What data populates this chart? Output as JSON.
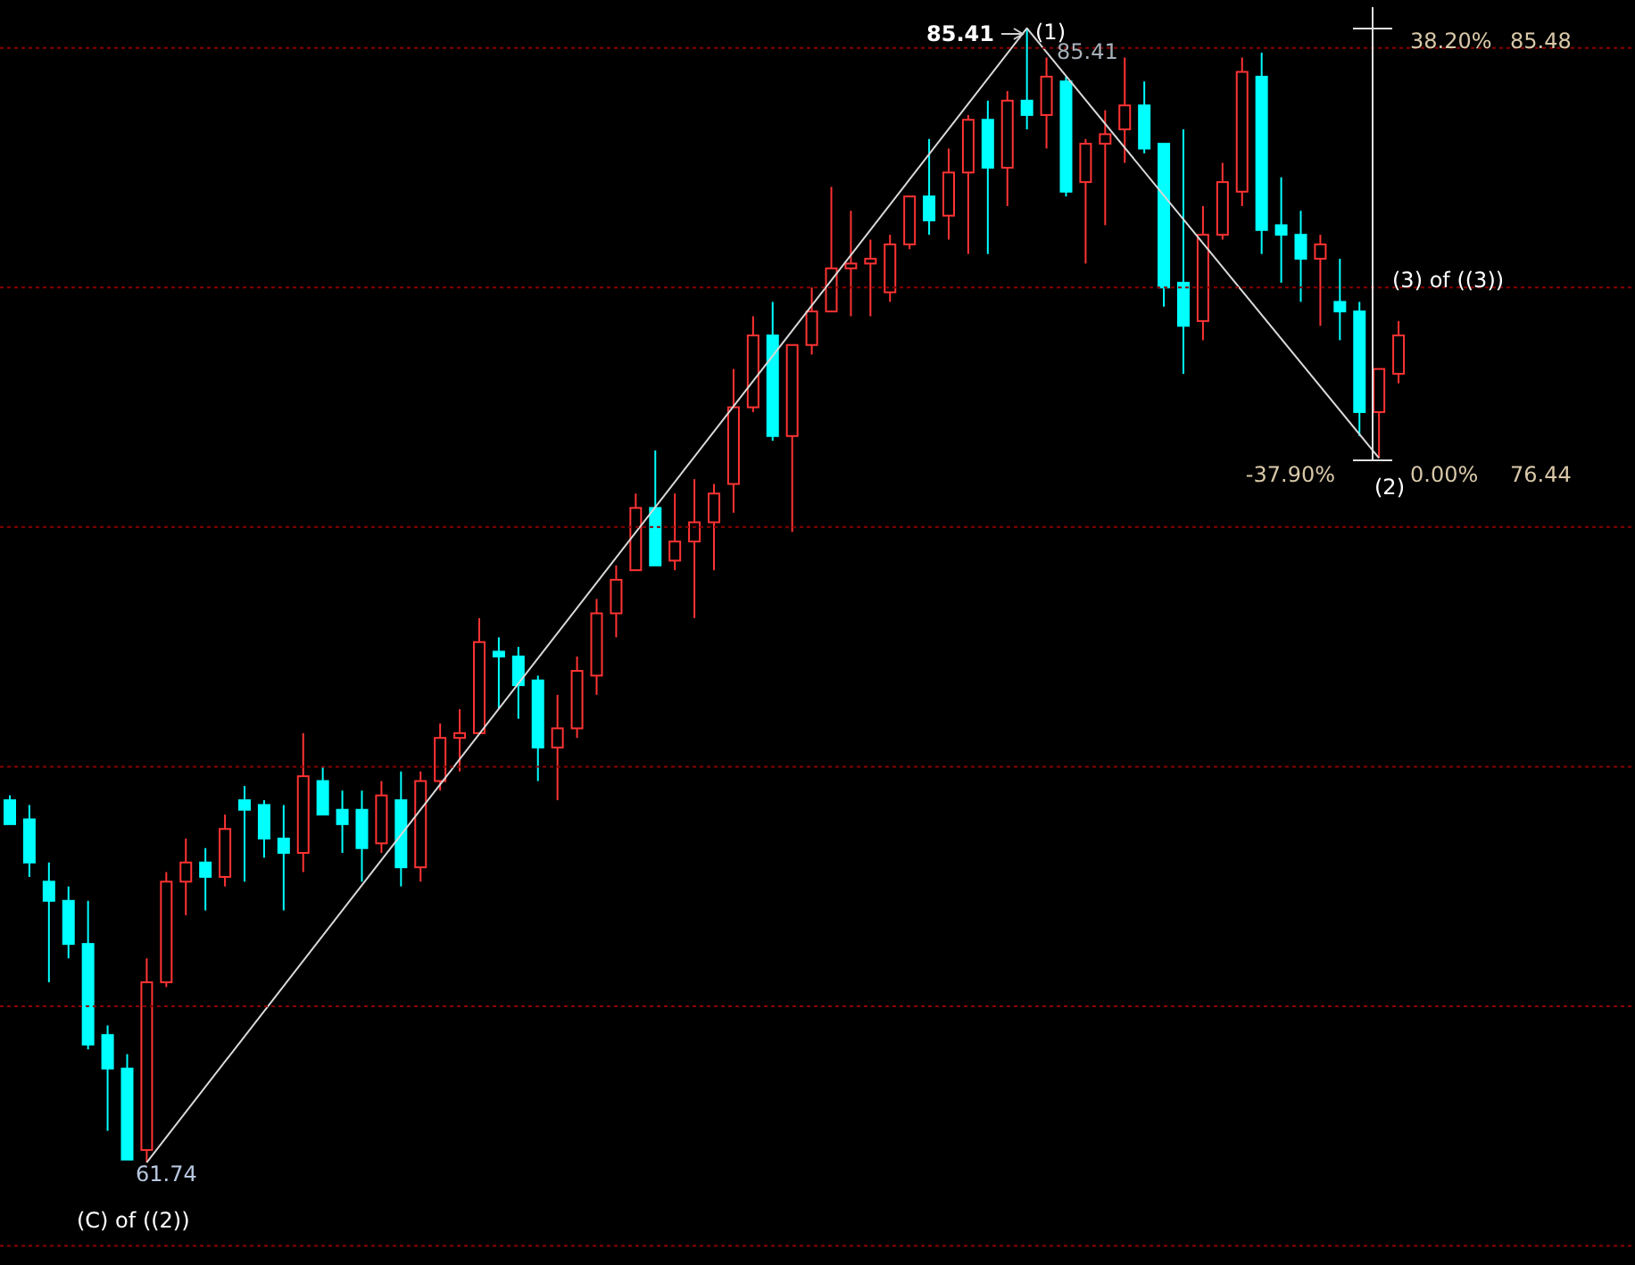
{
  "chart_data": {
    "type": "candlestick",
    "categories": [
      null,
      null,
      null,
      null,
      null,
      null,
      null,
      null,
      null,
      null,
      null,
      null,
      null,
      null,
      null,
      null,
      null,
      null,
      null,
      null,
      null,
      null,
      null,
      null,
      null,
      null,
      null,
      null,
      null,
      null,
      null,
      null,
      null,
      null,
      null,
      null,
      null,
      null,
      null,
      null,
      null,
      null,
      null,
      null,
      null,
      null,
      null,
      null,
      null,
      null,
      null,
      null,
      null,
      null,
      null,
      null,
      null,
      null,
      null,
      null,
      null,
      null,
      null,
      null,
      null,
      null,
      null,
      null,
      null,
      null,
      null,
      null
    ],
    "ohlc": [
      [
        69.3,
        69.4,
        68.8,
        68.8
      ],
      [
        68.9,
        69.2,
        67.7,
        68.0
      ],
      [
        67.6,
        68.0,
        65.5,
        67.2
      ],
      [
        67.2,
        67.5,
        66.0,
        66.3
      ],
      [
        66.3,
        67.2,
        64.1,
        64.2
      ],
      [
        64.4,
        64.6,
        62.4,
        63.7
      ],
      [
        63.7,
        64.0,
        61.8,
        61.8
      ],
      [
        62.0,
        66.0,
        61.74,
        65.5
      ],
      [
        65.5,
        67.8,
        65.4,
        67.6
      ],
      [
        67.6,
        68.5,
        66.9,
        68.0
      ],
      [
        68.0,
        68.3,
        67.0,
        67.7
      ],
      [
        67.7,
        69.0,
        67.5,
        68.7
      ],
      [
        69.3,
        69.6,
        67.6,
        69.1
      ],
      [
        69.2,
        69.3,
        68.1,
        68.5
      ],
      [
        68.5,
        69.2,
        67.0,
        68.2
      ],
      [
        68.2,
        70.7,
        67.8,
        69.8
      ],
      [
        69.7,
        70.0,
        69.0,
        69.0
      ],
      [
        69.1,
        69.5,
        68.2,
        68.8
      ],
      [
        69.1,
        69.5,
        67.6,
        68.3
      ],
      [
        68.4,
        69.7,
        68.2,
        69.4
      ],
      [
        69.3,
        69.9,
        67.5,
        67.9
      ],
      [
        67.9,
        69.9,
        67.6,
        69.7
      ],
      [
        69.7,
        70.9,
        69.5,
        70.6
      ],
      [
        70.6,
        71.2,
        69.9,
        70.7
      ],
      [
        70.7,
        73.1,
        70.7,
        72.6
      ],
      [
        72.4,
        72.7,
        71.2,
        72.3
      ],
      [
        72.3,
        72.5,
        71.0,
        71.7
      ],
      [
        71.8,
        71.9,
        69.7,
        70.4
      ],
      [
        70.4,
        71.5,
        69.3,
        70.8
      ],
      [
        70.8,
        72.3,
        70.6,
        72.0
      ],
      [
        71.9,
        73.5,
        71.5,
        73.2
      ],
      [
        73.2,
        74.2,
        72.7,
        73.9
      ],
      [
        74.1,
        75.7,
        74.1,
        75.4
      ],
      [
        75.4,
        76.6,
        74.2,
        74.2
      ],
      [
        74.3,
        75.7,
        74.1,
        74.7
      ],
      [
        74.7,
        76.0,
        73.1,
        75.1
      ],
      [
        75.1,
        75.9,
        74.1,
        75.7
      ],
      [
        75.9,
        78.3,
        75.3,
        77.5
      ],
      [
        77.5,
        79.4,
        77.4,
        79.0
      ],
      [
        79.0,
        79.7,
        76.8,
        76.9
      ],
      [
        76.9,
        78.8,
        74.9,
        78.8
      ],
      [
        78.8,
        80.0,
        78.6,
        79.5
      ],
      [
        79.5,
        82.1,
        79.5,
        80.4
      ],
      [
        80.4,
        81.6,
        79.4,
        80.5
      ],
      [
        80.5,
        81.0,
        79.4,
        80.6
      ],
      [
        79.9,
        81.1,
        79.7,
        80.9
      ],
      [
        80.9,
        81.9,
        80.8,
        81.9
      ],
      [
        81.9,
        83.1,
        81.1,
        81.4
      ],
      [
        81.5,
        82.9,
        81.0,
        82.4
      ],
      [
        82.4,
        83.6,
        80.7,
        83.5
      ],
      [
        83.5,
        83.9,
        80.7,
        82.5
      ],
      [
        82.5,
        84.1,
        81.7,
        83.9
      ],
      [
        83.9,
        85.41,
        83.3,
        83.6
      ],
      [
        83.6,
        84.8,
        82.9,
        84.4
      ],
      [
        84.3,
        84.4,
        81.9,
        82.0
      ],
      [
        82.2,
        83.1,
        80.5,
        83.0
      ],
      [
        83.0,
        83.7,
        81.3,
        83.2
      ],
      [
        83.3,
        84.8,
        82.6,
        83.8
      ],
      [
        83.8,
        84.3,
        82.8,
        82.9
      ],
      [
        83.0,
        83.0,
        79.6,
        80.0
      ],
      [
        80.1,
        83.3,
        78.2,
        79.2
      ],
      [
        79.3,
        81.7,
        78.9,
        81.1
      ],
      [
        81.1,
        82.6,
        81.0,
        82.2
      ],
      [
        82.0,
        84.8,
        81.7,
        84.5
      ],
      [
        84.4,
        84.9,
        80.7,
        81.2
      ],
      [
        81.3,
        82.3,
        80.1,
        81.1
      ],
      [
        81.1,
        81.6,
        79.7,
        80.6
      ],
      [
        80.6,
        81.1,
        79.2,
        80.9
      ],
      [
        79.7,
        80.6,
        78.9,
        79.5
      ],
      [
        79.5,
        79.7,
        76.9,
        77.4
      ],
      [
        77.4,
        78.3,
        76.44,
        78.3
      ],
      [
        78.2,
        79.3,
        78.0,
        79.0
      ]
    ],
    "colors": [
      "#00ffff",
      "#00ffff",
      "#00ffff",
      "#00ffff",
      "#00ffff",
      "#00ffff",
      "#00ffff",
      "#ff3333",
      "#ff3333",
      "#ff3333",
      "#00ffff",
      "#ff3333",
      "#00ffff",
      "#00ffff",
      "#00ffff",
      "#ff3333",
      "#00ffff",
      "#00ffff",
      "#00ffff",
      "#ff3333",
      "#00ffff",
      "#ff3333",
      "#ff3333",
      "#ff3333",
      "#ff3333",
      "#00ffff",
      "#00ffff",
      "#00ffff",
      "#ff3333",
      "#ff3333",
      "#ff3333",
      "#ff3333",
      "#ff3333",
      "#00ffff",
      "#ff3333",
      "#ff3333",
      "#ff3333",
      "#ff3333",
      "#ff3333",
      "#00ffff",
      "#ff3333",
      "#ff3333",
      "#ff3333",
      "#ff3333",
      "#ff3333",
      "#ff3333",
      "#ff3333",
      "#00ffff",
      "#ff3333",
      "#ff3333",
      "#00ffff",
      "#ff3333",
      "#00ffff",
      "#ff3333",
      "#00ffff",
      "#ff3333",
      "#ff3333",
      "#ff3333",
      "#00ffff",
      "#00ffff",
      "#00ffff",
      "#ff3333",
      "#ff3333",
      "#ff3333",
      "#00ffff",
      "#00ffff",
      "#00ffff",
      "#ff3333",
      "#00ffff",
      "#00ffff",
      "#ff3333",
      "#ff3333"
    ],
    "series": [
      {
        "type": "line",
        "color": "#d8d8d8",
        "values": [
          null,
          null,
          null,
          null,
          null,
          null,
          null,
          61.74,
          null,
          null,
          null,
          null,
          null,
          null,
          null,
          null,
          null,
          null,
          null,
          null,
          null,
          null,
          null,
          null,
          null,
          null,
          null,
          null,
          null,
          null,
          null,
          null,
          null,
          null,
          null,
          null,
          null,
          null,
          null,
          null,
          null,
          null,
          null,
          null,
          null,
          null,
          null,
          null,
          null,
          null,
          null,
          null,
          85.41,
          null,
          null,
          null,
          null,
          null,
          null,
          null,
          null,
          null,
          null,
          null,
          null,
          null,
          null,
          null,
          null,
          null,
          76.44,
          null
        ]
      }
    ],
    "ylim": [
      59.6,
      86.0
    ],
    "yticks": [
      {
        "value": 60,
        "label": null
      },
      {
        "value": 65,
        "label": null
      },
      {
        "value": 70,
        "label": null
      },
      {
        "value": 75,
        "label": null
      },
      {
        "value": 80,
        "label": null
      },
      {
        "value": 85,
        "label": null
      }
    ],
    "grid": "y",
    "tick_labels": false,
    "annotations": [
      "85.41",
      "(1)",
      "85.41",
      "38.20%",
      "85.48",
      "(3) of ((3))",
      "-37.90%",
      "(2)",
      "0.00%",
      "76.44",
      "61.74",
      "(C) of ((2))"
    ]
  }
}
